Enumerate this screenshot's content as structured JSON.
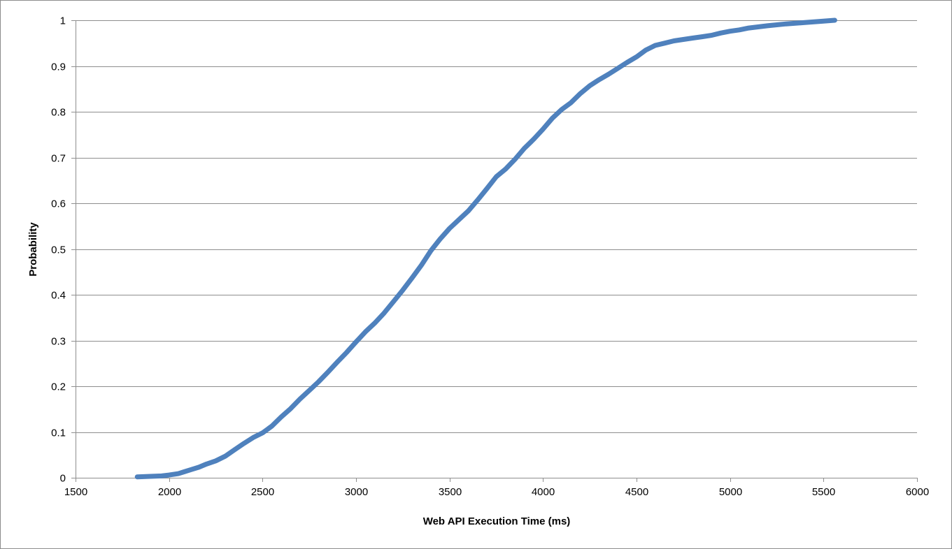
{
  "chart_data": {
    "type": "line",
    "title": "",
    "xlabel": "Web API Execution Time (ms)",
    "ylabel": "Probability",
    "xlim": [
      1500,
      6000
    ],
    "ylim": [
      0,
      1
    ],
    "x_ticks": [
      1500,
      2000,
      2500,
      3000,
      3500,
      4000,
      4500,
      5000,
      5500,
      6000
    ],
    "y_ticks": [
      0,
      0.1,
      0.2,
      0.3,
      0.4,
      0.5,
      0.6,
      0.7,
      0.8,
      0.9,
      1
    ],
    "grid": "horizontal",
    "legend": "none",
    "series": [
      {
        "color": "#4f81bd",
        "x": [
          1830,
          1900,
          1960,
          2000,
          2050,
          2080,
          2120,
          2160,
          2200,
          2250,
          2300,
          2350,
          2400,
          2450,
          2500,
          2550,
          2600,
          2650,
          2700,
          2750,
          2800,
          2850,
          2900,
          2950,
          3000,
          3050,
          3100,
          3150,
          3200,
          3250,
          3300,
          3350,
          3400,
          3450,
          3500,
          3550,
          3600,
          3650,
          3700,
          3750,
          3800,
          3850,
          3900,
          3950,
          4000,
          4050,
          4100,
          4150,
          4200,
          4250,
          4300,
          4350,
          4400,
          4450,
          4500,
          4550,
          4600,
          4650,
          4700,
          4750,
          4800,
          4850,
          4900,
          4950,
          5000,
          5050,
          5100,
          5200,
          5300,
          5400,
          5500,
          5560
        ],
        "y": [
          0.002,
          0.003,
          0.004,
          0.006,
          0.009,
          0.013,
          0.018,
          0.023,
          0.03,
          0.037,
          0.047,
          0.061,
          0.075,
          0.088,
          0.098,
          0.113,
          0.133,
          0.151,
          0.172,
          0.191,
          0.21,
          0.231,
          0.253,
          0.274,
          0.297,
          0.319,
          0.338,
          0.36,
          0.385,
          0.41,
          0.437,
          0.465,
          0.496,
          0.522,
          0.545,
          0.564,
          0.583,
          0.607,
          0.632,
          0.658,
          0.675,
          0.696,
          0.72,
          0.74,
          0.762,
          0.786,
          0.805,
          0.82,
          0.84,
          0.857,
          0.87,
          0.882,
          0.895,
          0.908,
          0.92,
          0.935,
          0.945,
          0.95,
          0.955,
          0.958,
          0.961,
          0.964,
          0.967,
          0.972,
          0.976,
          0.979,
          0.983,
          0.988,
          0.992,
          0.995,
          0.998,
          1
        ]
      }
    ]
  }
}
